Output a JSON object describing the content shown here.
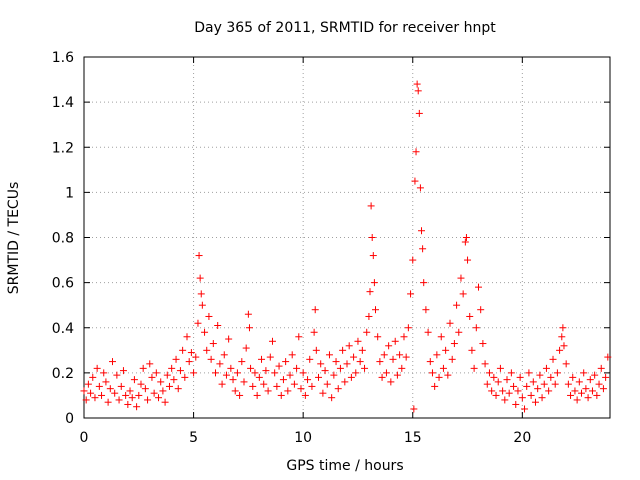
{
  "chart_data": {
    "type": "scatter",
    "title": "Day 365 of 2011, SRMTID for receiver hnpt",
    "xlabel": "GPS time / hours",
    "ylabel": "SRMTID / TECUs",
    "xlim": [
      0,
      24
    ],
    "ylim": [
      0,
      1.6
    ],
    "xticks": [
      0,
      5,
      10,
      15,
      20
    ],
    "xtick_labels": [
      "0",
      "5",
      "10",
      "15",
      "20"
    ],
    "yticks": [
      0,
      0.2,
      0.4,
      0.6,
      0.8,
      1,
      1.2,
      1.4,
      1.6
    ],
    "ytick_labels": [
      "0",
      "0.2",
      "0.4",
      "0.6",
      "0.8",
      "1",
      "1.2",
      "1.4",
      "1.6"
    ],
    "grid": true,
    "marker": "+",
    "color": "#ff0000",
    "series": [
      {
        "name": "SRMTID",
        "points": [
          [
            0.0,
            0.12
          ],
          [
            0.1,
            0.08
          ],
          [
            0.2,
            0.15
          ],
          [
            0.3,
            0.11
          ],
          [
            0.4,
            0.18
          ],
          [
            0.5,
            0.09
          ],
          [
            0.6,
            0.22
          ],
          [
            0.7,
            0.14
          ],
          [
            0.8,
            0.1
          ],
          [
            0.9,
            0.2
          ],
          [
            1.0,
            0.16
          ],
          [
            1.1,
            0.07
          ],
          [
            1.2,
            0.13
          ],
          [
            1.3,
            0.25
          ],
          [
            1.4,
            0.11
          ],
          [
            1.5,
            0.19
          ],
          [
            1.6,
            0.08
          ],
          [
            1.7,
            0.14
          ],
          [
            1.8,
            0.21
          ],
          [
            1.9,
            0.1
          ],
          [
            2.0,
            0.06
          ],
          [
            2.1,
            0.12
          ],
          [
            2.2,
            0.09
          ],
          [
            2.3,
            0.17
          ],
          [
            2.4,
            0.05
          ],
          [
            2.5,
            0.1
          ],
          [
            2.6,
            0.15
          ],
          [
            2.7,
            0.22
          ],
          [
            2.8,
            0.13
          ],
          [
            2.9,
            0.08
          ],
          [
            3.0,
            0.24
          ],
          [
            3.1,
            0.18
          ],
          [
            3.2,
            0.11
          ],
          [
            3.3,
            0.2
          ],
          [
            3.4,
            0.09
          ],
          [
            3.5,
            0.16
          ],
          [
            3.6,
            0.12
          ],
          [
            3.7,
            0.07
          ],
          [
            3.8,
            0.19
          ],
          [
            3.9,
            0.14
          ],
          [
            4.0,
            0.22
          ],
          [
            4.1,
            0.17
          ],
          [
            4.2,
            0.26
          ],
          [
            4.3,
            0.13
          ],
          [
            4.4,
            0.21
          ],
          [
            4.5,
            0.3
          ],
          [
            4.6,
            0.18
          ],
          [
            4.7,
            0.36
          ],
          [
            4.8,
            0.25
          ],
          [
            4.9,
            0.29
          ],
          [
            5.0,
            0.2
          ],
          [
            5.1,
            0.27
          ],
          [
            5.2,
            0.42
          ],
          [
            5.25,
            0.72
          ],
          [
            5.3,
            0.62
          ],
          [
            5.35,
            0.55
          ],
          [
            5.4,
            0.5
          ],
          [
            5.5,
            0.38
          ],
          [
            5.6,
            0.3
          ],
          [
            5.7,
            0.45
          ],
          [
            5.8,
            0.26
          ],
          [
            5.9,
            0.33
          ],
          [
            6.0,
            0.2
          ],
          [
            6.1,
            0.41
          ],
          [
            6.2,
            0.24
          ],
          [
            6.3,
            0.15
          ],
          [
            6.4,
            0.28
          ],
          [
            6.5,
            0.19
          ],
          [
            6.6,
            0.35
          ],
          [
            6.7,
            0.22
          ],
          [
            6.8,
            0.17
          ],
          [
            6.9,
            0.12
          ],
          [
            7.0,
            0.2
          ],
          [
            7.1,
            0.1
          ],
          [
            7.2,
            0.25
          ],
          [
            7.3,
            0.16
          ],
          [
            7.4,
            0.31
          ],
          [
            7.5,
            0.46
          ],
          [
            7.55,
            0.4
          ],
          [
            7.6,
            0.22
          ],
          [
            7.7,
            0.14
          ],
          [
            7.8,
            0.2
          ],
          [
            7.9,
            0.1
          ],
          [
            8.0,
            0.18
          ],
          [
            8.1,
            0.26
          ],
          [
            8.2,
            0.15
          ],
          [
            8.3,
            0.21
          ],
          [
            8.4,
            0.12
          ],
          [
            8.5,
            0.27
          ],
          [
            8.6,
            0.34
          ],
          [
            8.7,
            0.2
          ],
          [
            8.8,
            0.14
          ],
          [
            8.9,
            0.23
          ],
          [
            9.0,
            0.1
          ],
          [
            9.1,
            0.17
          ],
          [
            9.2,
            0.25
          ],
          [
            9.3,
            0.12
          ],
          [
            9.4,
            0.19
          ],
          [
            9.5,
            0.28
          ],
          [
            9.6,
            0.15
          ],
          [
            9.7,
            0.22
          ],
          [
            9.8,
            0.36
          ],
          [
            9.9,
            0.13
          ],
          [
            10.0,
            0.2
          ],
          [
            10.1,
            0.1
          ],
          [
            10.2,
            0.17
          ],
          [
            10.3,
            0.26
          ],
          [
            10.4,
            0.14
          ],
          [
            10.5,
            0.38
          ],
          [
            10.55,
            0.48
          ],
          [
            10.6,
            0.3
          ],
          [
            10.7,
            0.18
          ],
          [
            10.8,
            0.24
          ],
          [
            10.9,
            0.11
          ],
          [
            11.0,
            0.21
          ],
          [
            11.1,
            0.15
          ],
          [
            11.2,
            0.28
          ],
          [
            11.3,
            0.09
          ],
          [
            11.4,
            0.19
          ],
          [
            11.5,
            0.25
          ],
          [
            11.6,
            0.13
          ],
          [
            11.7,
            0.22
          ],
          [
            11.8,
            0.3
          ],
          [
            11.9,
            0.16
          ],
          [
            12.0,
            0.24
          ],
          [
            12.1,
            0.32
          ],
          [
            12.2,
            0.18
          ],
          [
            12.3,
            0.27
          ],
          [
            12.4,
            0.2
          ],
          [
            12.5,
            0.34
          ],
          [
            12.6,
            0.25
          ],
          [
            12.7,
            0.3
          ],
          [
            12.8,
            0.22
          ],
          [
            12.9,
            0.38
          ],
          [
            13.0,
            0.45
          ],
          [
            13.05,
            0.56
          ],
          [
            13.1,
            0.94
          ],
          [
            13.15,
            0.8
          ],
          [
            13.2,
            0.72
          ],
          [
            13.25,
            0.6
          ],
          [
            13.3,
            0.48
          ],
          [
            13.4,
            0.36
          ],
          [
            13.5,
            0.25
          ],
          [
            13.6,
            0.18
          ],
          [
            13.7,
            0.28
          ],
          [
            13.8,
            0.2
          ],
          [
            13.9,
            0.32
          ],
          [
            14.0,
            0.16
          ],
          [
            14.1,
            0.26
          ],
          [
            14.2,
            0.34
          ],
          [
            14.3,
            0.19
          ],
          [
            14.4,
            0.28
          ],
          [
            14.5,
            0.22
          ],
          [
            14.6,
            0.36
          ],
          [
            14.7,
            0.27
          ],
          [
            14.8,
            0.4
          ],
          [
            14.9,
            0.55
          ],
          [
            15.0,
            0.7
          ],
          [
            15.05,
            0.04
          ],
          [
            15.1,
            1.05
          ],
          [
            15.15,
            1.18
          ],
          [
            15.2,
            1.48
          ],
          [
            15.25,
            1.45
          ],
          [
            15.3,
            1.35
          ],
          [
            15.35,
            1.02
          ],
          [
            15.4,
            0.83
          ],
          [
            15.45,
            0.75
          ],
          [
            15.5,
            0.6
          ],
          [
            15.6,
            0.48
          ],
          [
            15.7,
            0.38
          ],
          [
            15.8,
            0.25
          ],
          [
            15.9,
            0.2
          ],
          [
            16.0,
            0.14
          ],
          [
            16.1,
            0.28
          ],
          [
            16.2,
            0.18
          ],
          [
            16.3,
            0.36
          ],
          [
            16.4,
            0.22
          ],
          [
            16.5,
            0.3
          ],
          [
            16.6,
            0.19
          ],
          [
            16.7,
            0.42
          ],
          [
            16.8,
            0.26
          ],
          [
            16.9,
            0.33
          ],
          [
            17.0,
            0.5
          ],
          [
            17.1,
            0.38
          ],
          [
            17.2,
            0.62
          ],
          [
            17.3,
            0.55
          ],
          [
            17.4,
            0.78
          ],
          [
            17.45,
            0.8
          ],
          [
            17.5,
            0.7
          ],
          [
            17.6,
            0.45
          ],
          [
            17.7,
            0.3
          ],
          [
            17.8,
            0.22
          ],
          [
            17.9,
            0.4
          ],
          [
            18.0,
            0.58
          ],
          [
            18.1,
            0.48
          ],
          [
            18.2,
            0.33
          ],
          [
            18.3,
            0.24
          ],
          [
            18.4,
            0.15
          ],
          [
            18.5,
            0.2
          ],
          [
            18.6,
            0.12
          ],
          [
            18.7,
            0.18
          ],
          [
            18.8,
            0.1
          ],
          [
            18.9,
            0.16
          ],
          [
            19.0,
            0.22
          ],
          [
            19.1,
            0.12
          ],
          [
            19.2,
            0.08
          ],
          [
            19.3,
            0.17
          ],
          [
            19.4,
            0.11
          ],
          [
            19.5,
            0.2
          ],
          [
            19.6,
            0.14
          ],
          [
            19.7,
            0.06
          ],
          [
            19.8,
            0.12
          ],
          [
            19.9,
            0.18
          ],
          [
            20.0,
            0.09
          ],
          [
            20.1,
            0.04
          ],
          [
            20.2,
            0.14
          ],
          [
            20.3,
            0.2
          ],
          [
            20.4,
            0.1
          ],
          [
            20.5,
            0.16
          ],
          [
            20.6,
            0.07
          ],
          [
            20.7,
            0.13
          ],
          [
            20.8,
            0.19
          ],
          [
            20.9,
            0.09
          ],
          [
            21.0,
            0.15
          ],
          [
            21.1,
            0.22
          ],
          [
            21.2,
            0.12
          ],
          [
            21.3,
            0.18
          ],
          [
            21.4,
            0.26
          ],
          [
            21.5,
            0.15
          ],
          [
            21.6,
            0.2
          ],
          [
            21.7,
            0.3
          ],
          [
            21.8,
            0.36
          ],
          [
            21.85,
            0.4
          ],
          [
            21.9,
            0.32
          ],
          [
            22.0,
            0.24
          ],
          [
            22.1,
            0.15
          ],
          [
            22.2,
            0.1
          ],
          [
            22.3,
            0.18
          ],
          [
            22.4,
            0.12
          ],
          [
            22.5,
            0.08
          ],
          [
            22.6,
            0.16
          ],
          [
            22.7,
            0.11
          ],
          [
            22.8,
            0.2
          ],
          [
            22.9,
            0.13
          ],
          [
            23.0,
            0.09
          ],
          [
            23.1,
            0.17
          ],
          [
            23.2,
            0.12
          ],
          [
            23.3,
            0.19
          ],
          [
            23.4,
            0.1
          ],
          [
            23.5,
            0.15
          ],
          [
            23.6,
            0.22
          ],
          [
            23.7,
            0.13
          ],
          [
            23.8,
            0.18
          ],
          [
            23.9,
            0.27
          ]
        ]
      }
    ]
  }
}
